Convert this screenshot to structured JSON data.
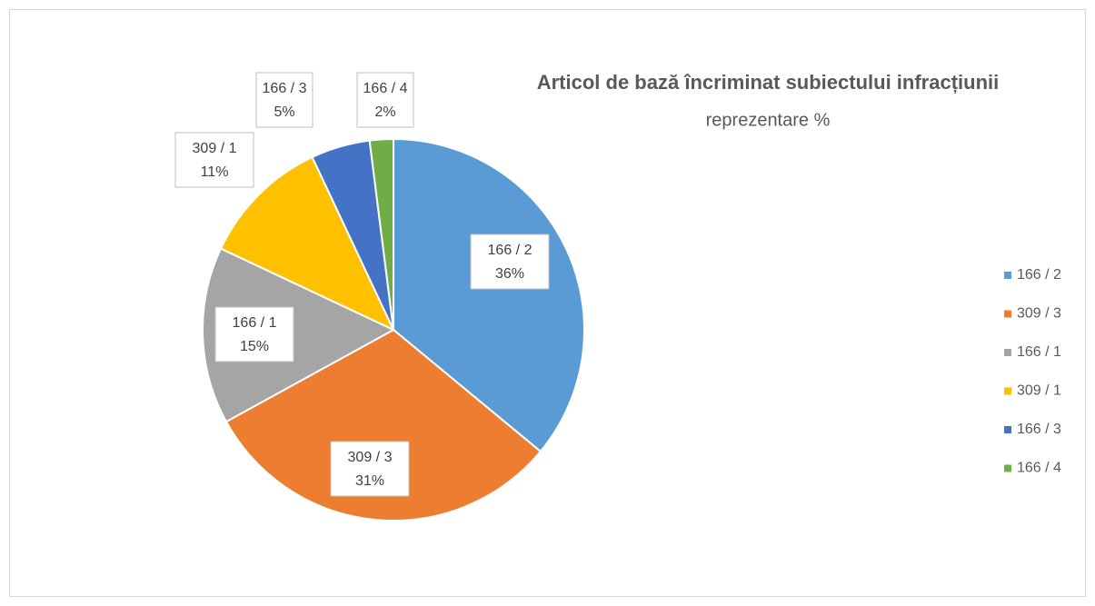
{
  "chart_data": {
    "type": "pie",
    "title": "Articol de bază încriminat subiectului infracțiunii",
    "subtitle": "reprezentare %",
    "categories": [
      "166 / 2",
      "309 / 3",
      "166 / 1",
      "309 / 1",
      "166 / 3",
      "166 / 4"
    ],
    "values": [
      36,
      31,
      15,
      11,
      5,
      2
    ],
    "value_labels": [
      "36%",
      "31%",
      "15%",
      "11%",
      "5%",
      "2%"
    ],
    "colors": [
      "#5b9bd5",
      "#ed7d31",
      "#a5a5a5",
      "#ffc000",
      "#4472c4",
      "#70ad47"
    ],
    "legend": "right"
  }
}
